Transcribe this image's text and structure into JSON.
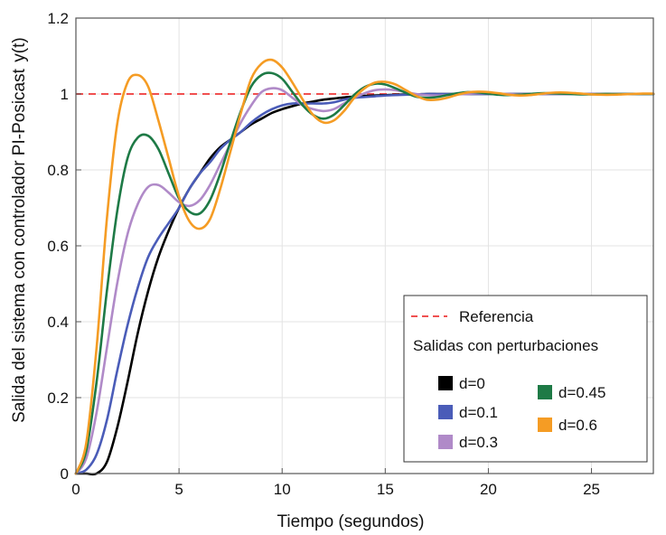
{
  "chart_data": {
    "type": "line",
    "title": "",
    "xlabel": "Tiempo (segundos)",
    "ylabel": "Salida del sistema con controlador PI-Posicast",
    "ylabel_extra": "y(t)",
    "xlim": [
      0,
      28
    ],
    "ylim": [
      0,
      1.2
    ],
    "xticks": [
      "0",
      "5",
      "10",
      "15",
      "20",
      "25"
    ],
    "yticks": [
      "0",
      "0.2",
      "0.4",
      "0.6",
      "0.8",
      "1",
      "1.2"
    ],
    "grid": true,
    "legend": {
      "placement": "bottom-right",
      "reference_label": "Referencia",
      "group_title": "Salidas con perturbaciones"
    },
    "reference": {
      "name": "Referencia",
      "value": 1.0,
      "color": "#f05050",
      "style": "dashed"
    },
    "x": [
      0,
      0.5,
      1,
      1.5,
      2,
      2.5,
      3,
      3.5,
      4,
      4.5,
      5,
      5.5,
      6,
      6.5,
      7,
      7.5,
      8,
      8.5,
      9,
      9.5,
      10,
      10.5,
      11,
      11.5,
      12,
      12.5,
      13,
      13.5,
      14,
      14.5,
      15,
      15.5,
      16,
      16.5,
      17,
      17.5,
      18,
      18.5,
      19,
      19.5,
      20,
      20.5,
      21,
      21.5,
      22,
      22.5,
      23,
      23.5,
      24,
      24.5,
      25,
      25.5,
      26,
      26.5,
      27,
      27.5,
      28
    ],
    "series": [
      {
        "name": "d=0",
        "color": "#000000",
        "values": [
          0,
          0,
          0,
          0.03,
          0.12,
          0.24,
          0.37,
          0.48,
          0.57,
          0.64,
          0.7,
          0.75,
          0.79,
          0.83,
          0.86,
          0.88,
          0.9,
          0.92,
          0.935,
          0.95,
          0.96,
          0.968,
          0.975,
          0.98,
          0.985,
          0.988,
          0.991,
          0.993,
          0.995,
          0.996,
          0.997,
          0.998,
          0.999,
          0.999,
          1,
          1,
          1,
          1,
          1,
          1,
          1,
          1,
          1,
          1,
          1,
          1,
          1,
          1,
          1,
          1,
          1,
          1,
          1,
          1,
          1,
          1,
          1
        ]
      },
      {
        "name": "d=0.1",
        "color": "#4a5cb8",
        "values": [
          0,
          0.01,
          0.05,
          0.14,
          0.27,
          0.39,
          0.49,
          0.57,
          0.62,
          0.66,
          0.7,
          0.75,
          0.79,
          0.82,
          0.855,
          0.88,
          0.9,
          0.925,
          0.945,
          0.96,
          0.97,
          0.975,
          0.975,
          0.975,
          0.975,
          0.978,
          0.985,
          0.99,
          0.992,
          0.994,
          0.996,
          0.997,
          0.998,
          0.999,
          1,
          1,
          1,
          1,
          1,
          1,
          1,
          1,
          1,
          1,
          1,
          1,
          1,
          1,
          1,
          1,
          1,
          1,
          1,
          1,
          1,
          1,
          1
        ]
      },
      {
        "name": "d=0.3",
        "color": "#b08ac8",
        "values": [
          0,
          0.04,
          0.16,
          0.33,
          0.5,
          0.63,
          0.71,
          0.755,
          0.76,
          0.74,
          0.715,
          0.705,
          0.72,
          0.76,
          0.815,
          0.87,
          0.925,
          0.97,
          1.005,
          1.015,
          1.01,
          0.99,
          0.97,
          0.96,
          0.955,
          0.96,
          0.975,
          0.99,
          1.002,
          1.01,
          1.012,
          1.01,
          1.005,
          1,
          0.997,
          0.996,
          0.997,
          0.999,
          1,
          1.002,
          1.002,
          1.001,
          1,
          0.999,
          0.999,
          1,
          1,
          1,
          1,
          1,
          1,
          1,
          1,
          1,
          1,
          1,
          1
        ]
      },
      {
        "name": "d=0.45",
        "color": "#1e7a46",
        "values": [
          0,
          0.06,
          0.24,
          0.48,
          0.69,
          0.83,
          0.885,
          0.89,
          0.855,
          0.79,
          0.725,
          0.69,
          0.685,
          0.72,
          0.79,
          0.875,
          0.955,
          1.02,
          1.05,
          1.055,
          1.04,
          1.005,
          0.97,
          0.945,
          0.935,
          0.945,
          0.97,
          0.998,
          1.018,
          1.027,
          1.025,
          1.015,
          1.003,
          0.993,
          0.99,
          0.992,
          0.997,
          1.002,
          1.005,
          1.004,
          1.001,
          0.998,
          0.997,
          0.998,
          1,
          1.002,
          1.002,
          1.001,
          1,
          0.999,
          0.999,
          1,
          1,
          1,
          1,
          1,
          1
        ]
      },
      {
        "name": "d=0.6",
        "color": "#f59c24",
        "values": [
          0,
          0.08,
          0.33,
          0.67,
          0.92,
          1.03,
          1.05,
          1.02,
          0.93,
          0.83,
          0.73,
          0.665,
          0.645,
          0.67,
          0.75,
          0.85,
          0.95,
          1.04,
          1.08,
          1.09,
          1.07,
          1.03,
          0.985,
          0.945,
          0.925,
          0.93,
          0.955,
          0.99,
          1.015,
          1.03,
          1.032,
          1.025,
          1.01,
          0.995,
          0.985,
          0.985,
          0.99,
          0.998,
          1.004,
          1.006,
          1.005,
          1.002,
          0.998,
          0.996,
          0.997,
          1,
          1.003,
          1.004,
          1.003,
          1.001,
          0.999,
          0.998,
          0.998,
          0.999,
          1,
          1.001,
          1.001
        ]
      }
    ]
  }
}
